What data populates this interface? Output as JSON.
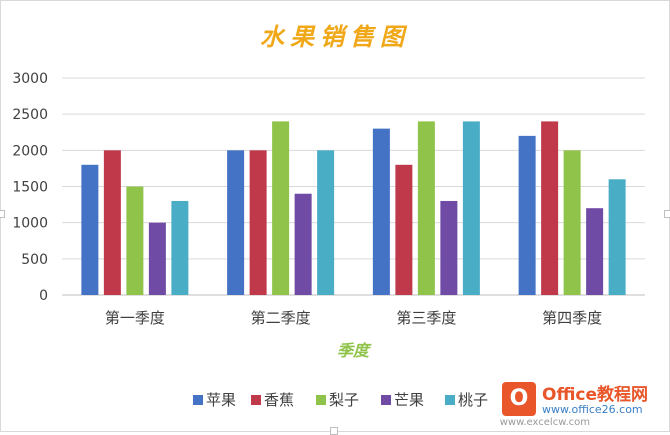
{
  "chart_data": {
    "type": "bar",
    "title": "水果销售图",
    "xlabel": "季度",
    "ylabel": "",
    "categories": [
      "第一季度",
      "第二季度",
      "第三季度",
      "第四季度"
    ],
    "ylim": [
      0,
      3000
    ],
    "yticks": [
      0,
      500,
      1000,
      1500,
      2000,
      2500,
      3000
    ],
    "grid": true,
    "legend_position": "bottom",
    "series": [
      {
        "name": "苹果",
        "color": "#4472c4",
        "values": [
          1800,
          2000,
          2300,
          2200
        ]
      },
      {
        "name": "香蕉",
        "color": "#c0394b",
        "values": [
          2000,
          2000,
          1800,
          2400
        ]
      },
      {
        "name": "梨子",
        "color": "#8fc34a",
        "values": [
          1500,
          2400,
          2400,
          2000
        ]
      },
      {
        "name": "芒果",
        "color": "#6f4ba6",
        "values": [
          1000,
          1400,
          1300,
          1200
        ]
      },
      {
        "name": "桃子",
        "color": "#4aadc6",
        "values": [
          1300,
          2000,
          2400,
          1600
        ]
      }
    ],
    "title_color": "#f0a818",
    "xlabel_color": "#8fc34a"
  },
  "watermark": {
    "logo_letter": "O",
    "name": "Office教程网",
    "url": "www.office26.com",
    "site": "www.excelcw.com"
  }
}
